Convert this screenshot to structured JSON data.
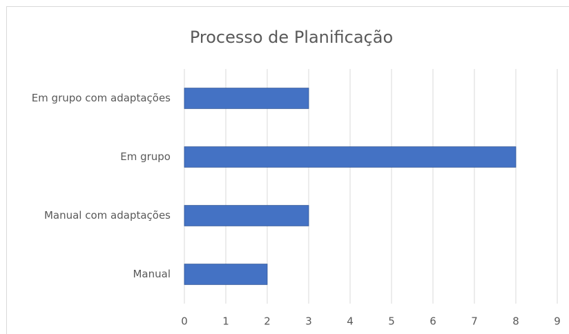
{
  "chart_data": {
    "type": "bar",
    "orientation": "horizontal",
    "title": "Processo de Planificação",
    "categories": [
      "Em grupo com adaptações",
      "Em grupo",
      "Manual com adaptações",
      "Manual"
    ],
    "values": [
      3,
      8,
      3,
      2
    ],
    "color": "#4472c4",
    "xlim": [
      0,
      9
    ],
    "xticks": [
      0,
      1,
      2,
      3,
      4,
      5,
      6,
      7,
      8,
      9
    ],
    "grid": true
  }
}
